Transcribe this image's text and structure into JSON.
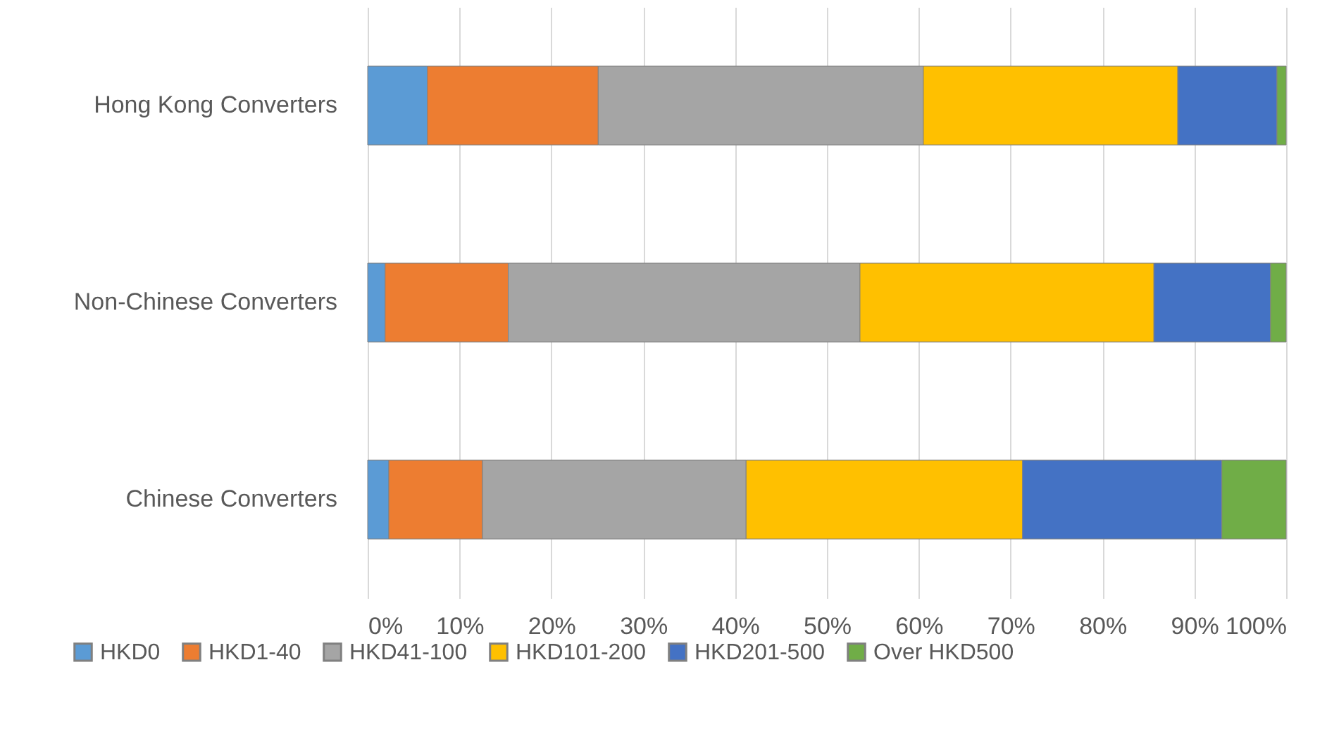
{
  "chart_data": {
    "type": "bar",
    "orientation": "horizontal",
    "stacked": true,
    "categories": [
      "Hong Kong Converters",
      "Non-Chinese Converters",
      "Chinese Converters"
    ],
    "series": [
      {
        "name": "HKD0",
        "color": "#5b9bd5",
        "values": [
          6.5,
          1.9,
          2.3
        ]
      },
      {
        "name": "HKD1-40",
        "color": "#ed7d31",
        "values": [
          18.6,
          13.4,
          10.2
        ]
      },
      {
        "name": "HKD41-100",
        "color": "#a5a5a5",
        "values": [
          35.4,
          38.3,
          28.7
        ]
      },
      {
        "name": "HKD101-200",
        "color": "#ffc000",
        "values": [
          27.7,
          32.0,
          30.1
        ]
      },
      {
        "name": "HKD201-500",
        "color": "#4472c4",
        "values": [
          10.8,
          12.7,
          21.7
        ]
      },
      {
        "name": "Over HKD500",
        "color": "#70ad47",
        "values": [
          1.0,
          1.7,
          7.0
        ]
      }
    ],
    "xlim": [
      0,
      100
    ],
    "xticks": [
      {
        "value": 0,
        "label": "0%"
      },
      {
        "value": 10,
        "label": "10%"
      },
      {
        "value": 20,
        "label": "20%"
      },
      {
        "value": 30,
        "label": "30%"
      },
      {
        "value": 40,
        "label": "40%"
      },
      {
        "value": 50,
        "label": "50%"
      },
      {
        "value": 60,
        "label": "60%"
      },
      {
        "value": 70,
        "label": "70%"
      },
      {
        "value": 80,
        "label": "80%"
      },
      {
        "value": 90,
        "label": "90%"
      },
      {
        "value": 100,
        "label": "100%"
      }
    ],
    "grid": "x",
    "legend": "bottom"
  }
}
